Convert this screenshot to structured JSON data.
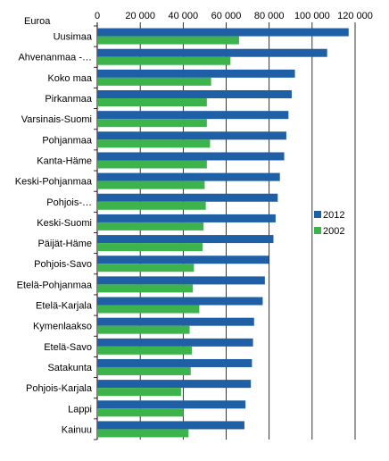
{
  "chart_data": {
    "type": "bar",
    "orientation": "horizontal",
    "unit_label": "Euroa",
    "x_ticks": [
      "0",
      "20 000",
      "40 000",
      "60 000",
      "80 000",
      "100 000",
      "120 000"
    ],
    "xlim": [
      0,
      120000
    ],
    "grid": "vertical lines",
    "legend_position": "right",
    "categories": [
      "Uusimaa",
      "Ahvenanmaa -…",
      "Koko maa",
      "Pirkanmaa",
      "Varsinais-Suomi",
      "Pohjanmaa",
      "Kanta-Häme",
      "Keski-Pohjanmaa",
      "Pohjois-…",
      "Keski-Suomi",
      "Päijät-Häme",
      "Pohjois-Savo",
      "Etelä-Pohjanmaa",
      "Etelä-Karjala",
      "Kymenlaakso",
      "Etelä-Savo",
      "Satakunta",
      "Pohjois-Karjala",
      "Lappi",
      "Kainuu"
    ],
    "series": [
      {
        "name": "2012",
        "color": "#1f5fa6",
        "values": [
          117000,
          107000,
          92000,
          90500,
          89000,
          88000,
          87000,
          85000,
          84000,
          83000,
          82000,
          80000,
          78000,
          77000,
          73000,
          72500,
          72000,
          71500,
          69000,
          68500
        ]
      },
      {
        "name": "2002",
        "color": "#3cb44b",
        "values": [
          66000,
          62000,
          53000,
          51000,
          51000,
          52500,
          51000,
          50000,
          50500,
          49500,
          49000,
          45000,
          44500,
          47500,
          43000,
          44000,
          43500,
          39000,
          40000,
          42500
        ]
      }
    ]
  }
}
